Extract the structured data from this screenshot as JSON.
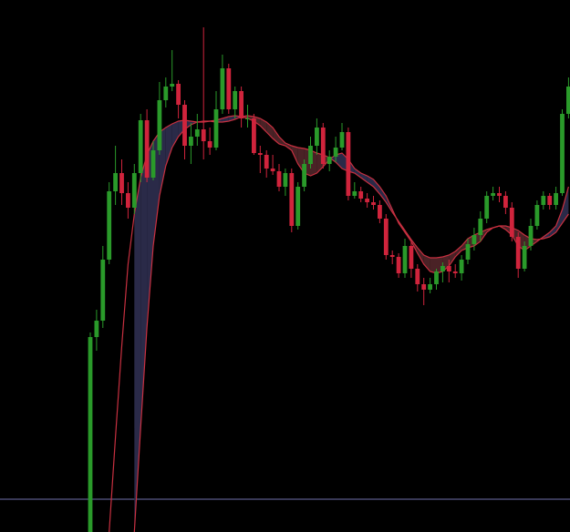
{
  "chart_data": {
    "type": "candlestick",
    "ylim": [
      0,
      584
    ],
    "up_color": "#2a9a2a",
    "down_color": "#d0243c",
    "open": [
      0,
      214,
      232,
      299,
      374,
      394,
      372,
      356,
      394,
      452,
      389,
      419,
      474,
      489,
      492,
      469,
      424,
      434,
      442,
      429,
      422,
      464,
      509,
      464,
      484,
      454,
      454,
      416,
      414,
      399,
      396,
      379,
      394,
      336,
      379,
      404,
      424,
      444,
      404,
      412,
      422,
      439,
      369,
      374,
      366,
      362,
      359,
      344,
      304,
      302,
      284,
      314,
      289,
      272,
      266,
      272,
      286,
      292,
      286,
      284,
      299,
      316,
      326,
      344,
      369,
      372,
      369,
      356,
      324,
      289,
      314,
      336,
      359,
      369,
      359,
      372,
      459
    ],
    "high": [
      219,
      244,
      314,
      384,
      424,
      409,
      384,
      404,
      459,
      464,
      429,
      494,
      499,
      529,
      496,
      474,
      449,
      459,
      554,
      444,
      484,
      524,
      514,
      489,
      489,
      469,
      459,
      424,
      419,
      414,
      404,
      399,
      399,
      384,
      409,
      434,
      454,
      449,
      419,
      434,
      449,
      444,
      384,
      379,
      372,
      369,
      364,
      349,
      309,
      306,
      322,
      319,
      294,
      279,
      279,
      289,
      296,
      299,
      294,
      304,
      322,
      334,
      352,
      374,
      379,
      379,
      374,
      362,
      329,
      319,
      344,
      364,
      374,
      372,
      379,
      464,
      499
    ],
    "low": [
      0,
      199,
      224,
      294,
      359,
      359,
      344,
      349,
      384,
      384,
      386,
      414,
      466,
      484,
      454,
      409,
      404,
      424,
      409,
      414,
      419,
      459,
      459,
      454,
      444,
      444,
      414,
      394,
      389,
      392,
      374,
      369,
      329,
      332,
      374,
      399,
      414,
      399,
      396,
      406,
      419,
      364,
      366,
      362,
      356,
      354,
      339,
      299,
      294,
      279,
      279,
      279,
      264,
      249,
      262,
      266,
      274,
      274,
      279,
      276,
      294,
      309,
      319,
      339,
      364,
      362,
      349,
      319,
      279,
      286,
      309,
      332,
      354,
      354,
      354,
      369,
      454
    ],
    "close": [
      214,
      232,
      299,
      374,
      394,
      372,
      356,
      394,
      452,
      389,
      419,
      474,
      489,
      492,
      469,
      424,
      434,
      442,
      429,
      422,
      464,
      509,
      464,
      484,
      454,
      454,
      416,
      414,
      399,
      396,
      379,
      394,
      336,
      379,
      404,
      424,
      444,
      404,
      412,
      422,
      439,
      369,
      374,
      366,
      362,
      359,
      344,
      304,
      302,
      284,
      314,
      289,
      272,
      266,
      272,
      286,
      292,
      286,
      284,
      299,
      316,
      326,
      344,
      369,
      372,
      369,
      356,
      324,
      289,
      314,
      336,
      359,
      369,
      359,
      372,
      459,
      489
    ],
    "series": [
      {
        "color": "#c83040",
        "values": [
          null,
          null,
          null,
          0,
          104,
          204,
          294,
          349,
          389,
          414,
          429,
          439,
          444,
          448,
          451,
          452,
          451,
          450,
          450,
          451,
          452,
          454,
          456,
          457,
          456,
          454,
          451,
          446,
          439,
          432,
          426,
          424,
          419,
          404,
          394,
          391,
          394,
          401,
          409,
          414,
          416,
          409,
          399,
          394,
          391,
          387,
          379,
          369,
          354,
          339,
          329,
          319,
          306,
          294,
          286,
          284,
          286,
          292,
          302,
          309,
          312,
          314,
          319,
          329,
          334,
          336,
          332,
          326,
          314,
          309,
          314,
          319,
          324,
          329,
          336,
          354,
          379
        ]
      },
      {
        "color": "#c83040",
        "values": [
          null,
          null,
          null,
          null,
          null,
          null,
          null,
          0,
          114,
          224,
          314,
          369,
          402,
          422,
          434,
          442,
          447,
          450,
          451,
          451,
          450,
          450,
          451,
          453,
          456,
          457,
          456,
          454,
          450,
          444,
          434,
          427,
          424,
          422,
          421,
          419,
          416,
          414,
          411,
          406,
          399,
          396,
          394,
          389,
          384,
          379,
          371,
          362,
          351,
          341,
          331,
          321,
          312,
          304,
          301,
          301,
          302,
          304,
          308,
          314,
          322,
          326,
          329,
          332,
          334,
          336,
          336,
          334,
          331,
          326,
          322,
          321,
          322,
          324,
          329,
          339,
          349
        ]
      }
    ],
    "cloud_colors": [
      "#2a2a48",
      "#4a2226"
    ],
    "reference_line": {
      "value": 36,
      "color": "#5a5a8a"
    }
  }
}
